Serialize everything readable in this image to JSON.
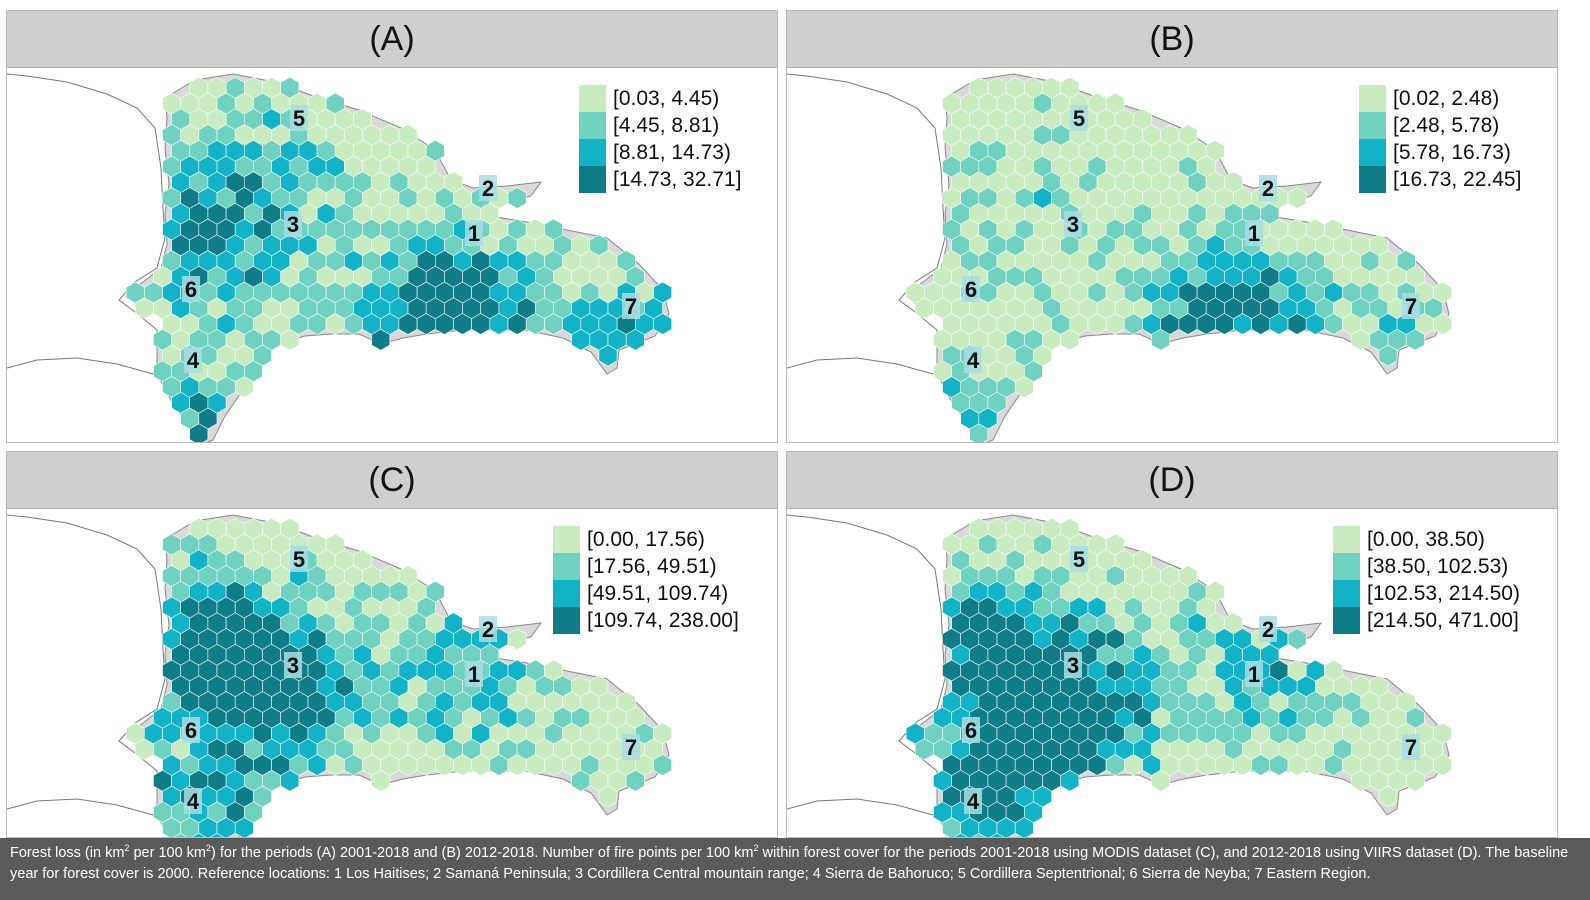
{
  "colors": [
    "#c8ecc0",
    "#6fd1c0",
    "#12b3c6",
    "#0f7d88"
  ],
  "panels": [
    {
      "title": "(A)",
      "legend": [
        "[0.03, 4.45)",
        "[4.45, 8.81)",
        "[8.81, 14.73)",
        "[14.73, 32.71]"
      ],
      "seed": 11,
      "hotspots": [
        [
          470,
          238,
          0.85
        ],
        [
          650,
          296,
          0.9
        ],
        [
          200,
          170,
          0.65
        ],
        [
          200,
          380,
          0.75
        ],
        [
          400,
          260,
          0.5
        ],
        [
          260,
          110,
          0.45
        ]
      ]
    },
    {
      "title": "(B)",
      "legend": [
        "[0.02, 2.48)",
        "[2.48, 5.78)",
        "[5.78, 16.73)",
        "[16.73, 22.45]"
      ],
      "seed": 23,
      "hotspots": [
        [
          470,
          238,
          0.65
        ],
        [
          640,
          300,
          0.55
        ],
        [
          200,
          380,
          0.6
        ],
        [
          400,
          260,
          0.45
        ],
        [
          200,
          150,
          0.3
        ]
      ]
    },
    {
      "title": "(C)",
      "legend": [
        "[0.00, 17.56)",
        "[17.56, 49.51)",
        "[49.51, 109.74)",
        "[109.74, 238.00]"
      ],
      "seed": 37,
      "hotspots": [
        [
          250,
          160,
          0.8
        ],
        [
          190,
          120,
          0.65
        ],
        [
          470,
          160,
          0.5
        ],
        [
          200,
          290,
          0.6
        ],
        [
          300,
          200,
          0.5
        ]
      ]
    },
    {
      "title": "(D)",
      "legend": [
        "[0.00, 38.50)",
        "[38.50, 102.53)",
        "[102.53, 214.50)",
        "[214.50, 471.00]"
      ],
      "seed": 53,
      "hotspots": [
        [
          175,
          130,
          0.85
        ],
        [
          270,
          175,
          0.7
        ],
        [
          470,
          170,
          0.55
        ],
        [
          200,
          290,
          0.8
        ],
        [
          290,
          220,
          0.6
        ]
      ]
    }
  ],
  "locations": [
    "1",
    "2",
    "3",
    "4",
    "5",
    "6",
    "7"
  ],
  "caption": {
    "p1": "Forest loss (in km",
    "s1": "2",
    "p2": " per 100 km",
    "s2": "2",
    "p3": ") for the periods (A) 2001-2018 and (B) 2012-2018. Number of fire points per 100 km",
    "s3": "2",
    "p4": " within forest cover for the periods 2001-2018 using MODIS dataset (C), and 2012-2018 using VIIRS dataset (D). The baseline year for forest cover is 2000. Reference locations: 1 Los Haitises; 2 Samaná Peninsula; 3 Cordillera Central mountain range; 4 Sierra de Bahoruco; 5 Cordillera Septentrional; 6 Sierra de Neyba; 7 Eastern Region."
  }
}
